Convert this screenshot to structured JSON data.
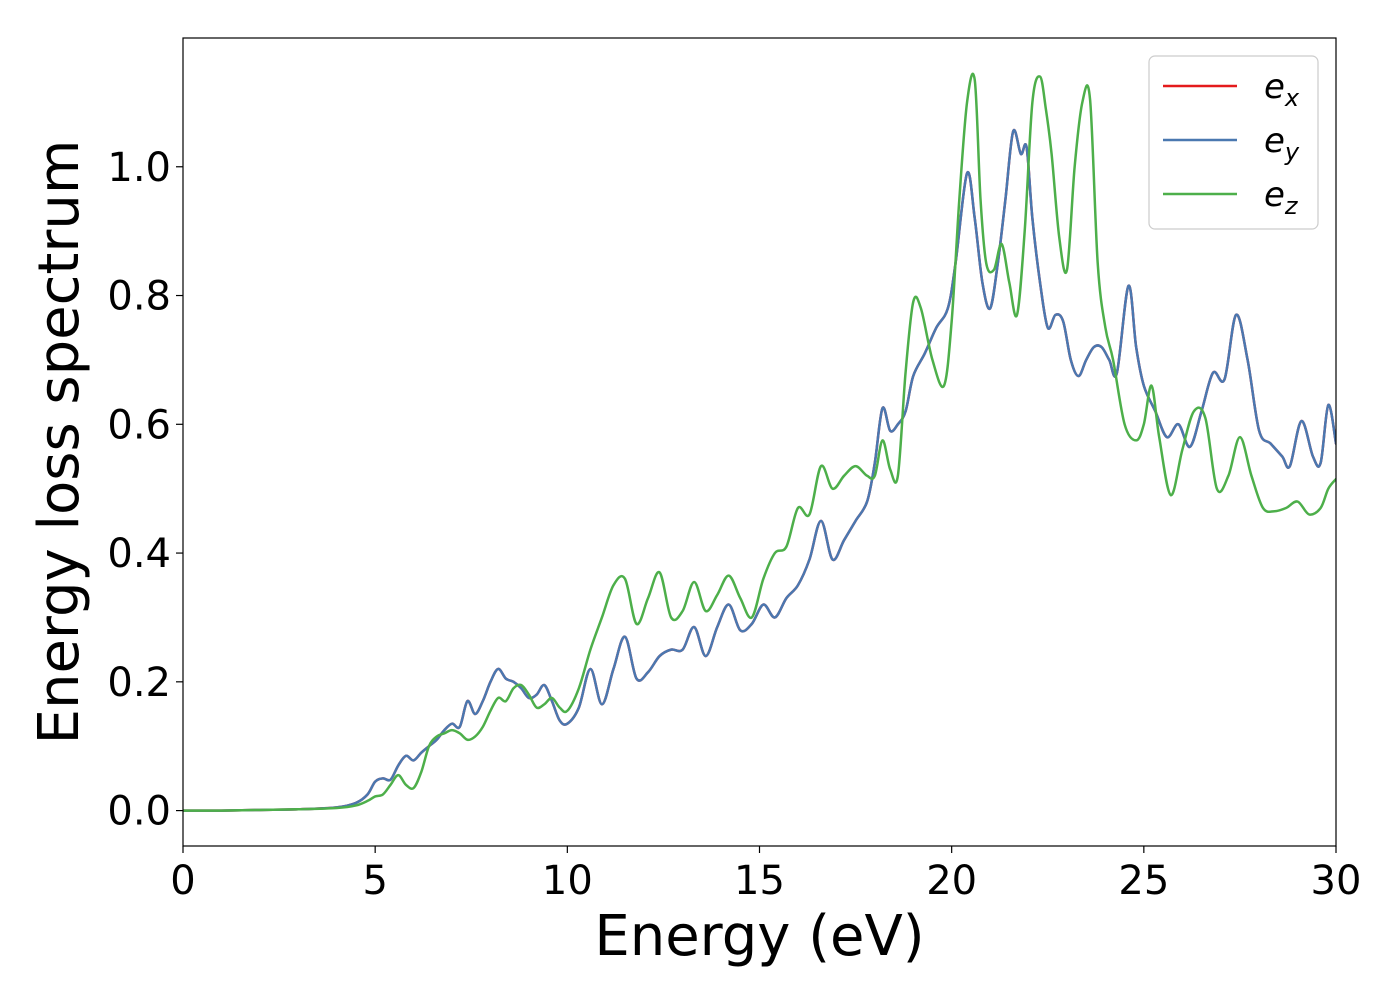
{
  "chart_data": {
    "type": "line",
    "xlabel": "Energy (eV)",
    "ylabel": "Energy loss spectrum",
    "xlim": [
      0,
      30
    ],
    "ylim": [
      -0.055,
      1.2
    ],
    "xticks": [
      0,
      5,
      10,
      15,
      20,
      25,
      30
    ],
    "xtick_labels": [
      "0",
      "5",
      "10",
      "15",
      "20",
      "25",
      "30"
    ],
    "yticks": [
      0.0,
      0.2,
      0.4,
      0.6,
      0.8,
      1.0
    ],
    "ytick_labels": [
      "0.0",
      "0.2",
      "0.4",
      "0.6",
      "0.8",
      "1.0"
    ],
    "grid": false,
    "legend_position": "top-right",
    "series": [
      {
        "name": "e_x",
        "base": "e",
        "sub": "x",
        "color": "#e41a1c",
        "x": [
          0,
          1,
          2,
          3,
          4,
          4.5,
          4.8,
          5.0,
          5.2,
          5.4,
          5.6,
          5.8,
          6.0,
          6.2,
          6.4,
          6.6,
          6.8,
          7.0,
          7.2,
          7.4,
          7.6,
          7.8,
          8.0,
          8.2,
          8.4,
          8.6,
          8.8,
          9.0,
          9.2,
          9.4,
          9.6,
          9.8,
          10.0,
          10.3,
          10.6,
          10.9,
          11.2,
          11.5,
          11.8,
          12.1,
          12.4,
          12.7,
          13.0,
          13.3,
          13.6,
          13.9,
          14.2,
          14.5,
          14.8,
          15.1,
          15.4,
          15.7,
          16.0,
          16.3,
          16.6,
          16.9,
          17.2,
          17.5,
          17.8,
          18.0,
          18.2,
          18.4,
          18.6,
          18.8,
          19.0,
          19.3,
          19.6,
          19.9,
          20.1,
          20.4,
          20.6,
          20.8,
          21.0,
          21.2,
          21.4,
          21.6,
          21.8,
          21.95,
          22.1,
          22.3,
          22.5,
          22.7,
          22.9,
          23.1,
          23.3,
          23.5,
          23.7,
          23.9,
          24.1,
          24.3,
          24.6,
          24.8,
          25.0,
          25.3,
          25.6,
          25.9,
          26.2,
          26.5,
          26.8,
          27.1,
          27.4,
          27.7,
          28.0,
          28.3,
          28.6,
          28.8,
          29.1,
          29.4,
          29.6,
          29.8,
          30.0
        ],
        "y": [
          0.0,
          0.0,
          0.001,
          0.002,
          0.005,
          0.012,
          0.025,
          0.045,
          0.05,
          0.048,
          0.07,
          0.085,
          0.078,
          0.09,
          0.1,
          0.11,
          0.125,
          0.135,
          0.13,
          0.17,
          0.15,
          0.17,
          0.2,
          0.22,
          0.205,
          0.2,
          0.19,
          0.175,
          0.18,
          0.195,
          0.17,
          0.14,
          0.135,
          0.16,
          0.22,
          0.165,
          0.22,
          0.27,
          0.205,
          0.215,
          0.24,
          0.25,
          0.25,
          0.285,
          0.24,
          0.285,
          0.32,
          0.28,
          0.29,
          0.32,
          0.3,
          0.33,
          0.35,
          0.39,
          0.45,
          0.39,
          0.42,
          0.45,
          0.48,
          0.54,
          0.625,
          0.59,
          0.6,
          0.62,
          0.675,
          0.71,
          0.75,
          0.78,
          0.85,
          0.99,
          0.92,
          0.82,
          0.78,
          0.85,
          0.95,
          1.055,
          1.02,
          1.03,
          0.92,
          0.82,
          0.75,
          0.77,
          0.76,
          0.7,
          0.675,
          0.7,
          0.72,
          0.72,
          0.7,
          0.68,
          0.815,
          0.72,
          0.66,
          0.62,
          0.58,
          0.6,
          0.565,
          0.62,
          0.68,
          0.67,
          0.77,
          0.7,
          0.59,
          0.57,
          0.55,
          0.535,
          0.605,
          0.55,
          0.54,
          0.63,
          0.57
        ]
      },
      {
        "name": "e_y",
        "base": "e",
        "sub": "y",
        "color": "#4a78b0",
        "x": [
          0,
          1,
          2,
          3,
          4,
          4.5,
          4.8,
          5.0,
          5.2,
          5.4,
          5.6,
          5.8,
          6.0,
          6.2,
          6.4,
          6.6,
          6.8,
          7.0,
          7.2,
          7.4,
          7.6,
          7.8,
          8.0,
          8.2,
          8.4,
          8.6,
          8.8,
          9.0,
          9.2,
          9.4,
          9.6,
          9.8,
          10.0,
          10.3,
          10.6,
          10.9,
          11.2,
          11.5,
          11.8,
          12.1,
          12.4,
          12.7,
          13.0,
          13.3,
          13.6,
          13.9,
          14.2,
          14.5,
          14.8,
          15.1,
          15.4,
          15.7,
          16.0,
          16.3,
          16.6,
          16.9,
          17.2,
          17.5,
          17.8,
          18.0,
          18.2,
          18.4,
          18.6,
          18.8,
          19.0,
          19.3,
          19.6,
          19.9,
          20.1,
          20.4,
          20.6,
          20.8,
          21.0,
          21.2,
          21.4,
          21.6,
          21.8,
          21.95,
          22.1,
          22.3,
          22.5,
          22.7,
          22.9,
          23.1,
          23.3,
          23.5,
          23.7,
          23.9,
          24.1,
          24.3,
          24.6,
          24.8,
          25.0,
          25.3,
          25.6,
          25.9,
          26.2,
          26.5,
          26.8,
          27.1,
          27.4,
          27.7,
          28.0,
          28.3,
          28.6,
          28.8,
          29.1,
          29.4,
          29.6,
          29.8,
          30.0
        ],
        "y": [
          0.0,
          0.0,
          0.001,
          0.002,
          0.005,
          0.012,
          0.025,
          0.045,
          0.05,
          0.048,
          0.07,
          0.085,
          0.078,
          0.09,
          0.1,
          0.11,
          0.125,
          0.135,
          0.13,
          0.17,
          0.15,
          0.17,
          0.2,
          0.22,
          0.205,
          0.2,
          0.19,
          0.175,
          0.18,
          0.195,
          0.17,
          0.14,
          0.135,
          0.16,
          0.22,
          0.165,
          0.22,
          0.27,
          0.205,
          0.215,
          0.24,
          0.25,
          0.25,
          0.285,
          0.24,
          0.285,
          0.32,
          0.28,
          0.29,
          0.32,
          0.3,
          0.33,
          0.35,
          0.39,
          0.45,
          0.39,
          0.42,
          0.45,
          0.48,
          0.54,
          0.625,
          0.59,
          0.6,
          0.62,
          0.675,
          0.71,
          0.75,
          0.78,
          0.85,
          0.99,
          0.92,
          0.82,
          0.78,
          0.85,
          0.95,
          1.055,
          1.02,
          1.03,
          0.92,
          0.82,
          0.75,
          0.77,
          0.76,
          0.7,
          0.675,
          0.7,
          0.72,
          0.72,
          0.7,
          0.68,
          0.815,
          0.72,
          0.66,
          0.62,
          0.58,
          0.6,
          0.565,
          0.62,
          0.68,
          0.67,
          0.77,
          0.7,
          0.59,
          0.57,
          0.55,
          0.535,
          0.605,
          0.55,
          0.54,
          0.63,
          0.57
        ]
      },
      {
        "name": "e_z",
        "base": "e",
        "sub": "z",
        "color": "#4daf4a",
        "x": [
          0,
          1,
          2,
          3,
          4,
          4.5,
          4.8,
          5.0,
          5.2,
          5.4,
          5.6,
          5.8,
          6.0,
          6.2,
          6.4,
          6.6,
          6.8,
          7.0,
          7.2,
          7.4,
          7.6,
          7.8,
          8.0,
          8.2,
          8.4,
          8.6,
          8.8,
          9.0,
          9.2,
          9.4,
          9.6,
          9.8,
          10.0,
          10.3,
          10.6,
          10.9,
          11.2,
          11.5,
          11.8,
          12.1,
          12.4,
          12.7,
          13.0,
          13.3,
          13.6,
          13.9,
          14.2,
          14.5,
          14.8,
          15.1,
          15.4,
          15.7,
          16.0,
          16.3,
          16.6,
          16.9,
          17.2,
          17.5,
          17.8,
          18.0,
          18.2,
          18.4,
          18.6,
          18.8,
          19.0,
          19.2,
          19.5,
          19.8,
          20.0,
          20.2,
          20.4,
          20.6,
          20.75,
          20.9,
          21.1,
          21.3,
          21.5,
          21.7,
          21.9,
          22.1,
          22.3,
          22.45,
          22.6,
          22.8,
          23.0,
          23.2,
          23.4,
          23.6,
          23.8,
          24.0,
          24.2,
          24.5,
          24.8,
          25.0,
          25.2,
          25.4,
          25.7,
          26.0,
          26.3,
          26.6,
          26.9,
          27.2,
          27.5,
          27.8,
          28.1,
          28.4,
          28.7,
          29.0,
          29.3,
          29.6,
          29.8,
          30.0
        ],
        "y": [
          0.0,
          0.0,
          0.001,
          0.002,
          0.004,
          0.008,
          0.015,
          0.022,
          0.025,
          0.04,
          0.055,
          0.04,
          0.035,
          0.06,
          0.1,
          0.115,
          0.12,
          0.125,
          0.12,
          0.11,
          0.115,
          0.13,
          0.155,
          0.175,
          0.17,
          0.19,
          0.195,
          0.18,
          0.16,
          0.165,
          0.175,
          0.16,
          0.155,
          0.19,
          0.25,
          0.3,
          0.35,
          0.36,
          0.29,
          0.33,
          0.37,
          0.3,
          0.31,
          0.355,
          0.31,
          0.335,
          0.365,
          0.33,
          0.3,
          0.36,
          0.4,
          0.41,
          0.47,
          0.46,
          0.535,
          0.5,
          0.52,
          0.535,
          0.52,
          0.52,
          0.575,
          0.53,
          0.52,
          0.68,
          0.79,
          0.78,
          0.7,
          0.66,
          0.76,
          0.95,
          1.1,
          1.135,
          0.95,
          0.85,
          0.84,
          0.88,
          0.82,
          0.77,
          0.9,
          1.1,
          1.14,
          1.09,
          1.02,
          0.89,
          0.84,
          1.0,
          1.1,
          1.105,
          0.85,
          0.75,
          0.7,
          0.6,
          0.575,
          0.6,
          0.66,
          0.58,
          0.49,
          0.56,
          0.62,
          0.61,
          0.5,
          0.52,
          0.58,
          0.52,
          0.47,
          0.465,
          0.47,
          0.48,
          0.46,
          0.47,
          0.5,
          0.515
        ]
      }
    ]
  }
}
